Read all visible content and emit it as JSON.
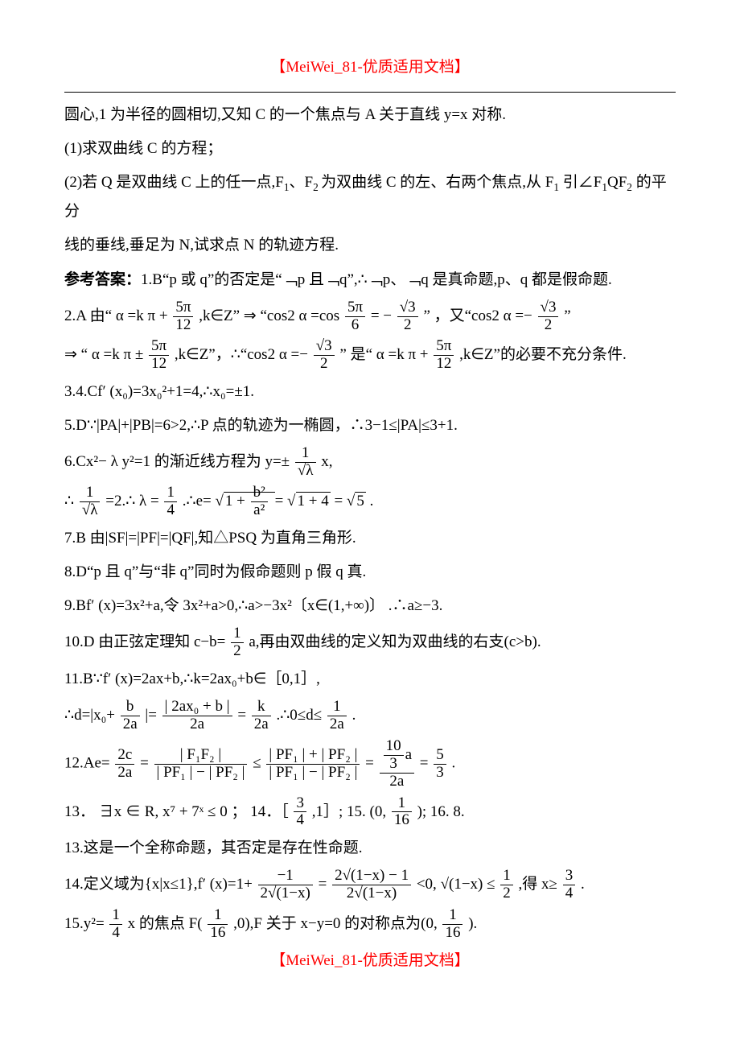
{
  "colors": {
    "text": "#000000",
    "accent": "#ff0000",
    "background": "#ffffff",
    "rule": "#000000"
  },
  "typography": {
    "body_font": "SimSun",
    "body_size_pt": 14,
    "line_height": 1.9,
    "header_color": "#ff0000"
  },
  "header": "【MeiWei_81-优质适用文档】",
  "footer": "【MeiWei_81-优质适用文档】",
  "lines": {
    "l1": "圆心,1 为半径的圆相切,又知 C 的一个焦点与 A 关于直线 y=x 对称.",
    "l2": "(1)求双曲线 C 的方程；",
    "l3a": "(2)若 Q 是双曲线 C 上的任一点,F",
    "l3b": "、F",
    "l3c": "为双曲线 C 的左、右两个焦点,从 F",
    "l3d": " 引∠F",
    "l3e": "QF",
    "l3f": " 的平分",
    "l4": "线的垂线,垂足为 N,试求点 N 的轨迹方程.",
    "l5a": "参考答案：",
    "l5b": "1.B“p 或 q”的否定是“﹁p 且﹁q”,∴﹁p、﹁q 是真命题,p、q 都是假命题.",
    "l6a": "2.A 由“ α =k π +",
    "l6b": ",k∈Z” ⇒ “cos2 α =cos",
    "l6c": "” ，又“cos2 α =−",
    "l6d": "”",
    "l7a": "⇒ “ α =k π ±",
    "l7b": ",k∈Z”，∴“cos2 α =−",
    "l7c": "” 是“ α =k π +",
    "l7d": ",k∈Z”的必要不充分条件.",
    "l8": "3.4.Cf′ (x₀)=3x₀²+1=4,∴x₀=±1.",
    "l9": "5.D∵|PA|+|PB|=6>2,∴P 点的轨迹为一椭圆，∴3−1≤|PA|≤3+1.",
    "l10a": "6.Cx²− λ y²=1 的渐近线方程为 y=±",
    "l10b": "x,",
    "l11a": "∴",
    "l11b": "=2.∴",
    "l11c": ".∴e=",
    "l11d": ".",
    "l12": "7.B 由|SF|=|PF|=|QF|,知△PSQ 为直角三角形.",
    "l13": "8.D“p 且 q”与“非 q”同时为假命题则 p 假 q 真.",
    "l14": "9.Bf′ (x)=3x²+a,令 3x²+a>0,∴a>−3x²〔x∈(1,+∞)〕 .∴a≥−3.",
    "l15a": "10.D 由正弦定理知 c−b=",
    "l15b": "a,再由双曲线的定义知为双曲线的右支(c>b).",
    "l16": "11.B∵f′ (x)=2ax+b,∴k=2ax₀+b∈［0,1］,",
    "l17a": "∴d=|x₀+",
    "l17b": "|=",
    "l17c": ".∴0≤d≤",
    "l17d": ".",
    "l18a": "12.Ae=",
    "l18b": "≤",
    "l18c": ".",
    "l19a": "13．",
    "l19b": "；  14．［",
    "l19c": ",1］;   15. (0,",
    "l19d": ");   16. 8.",
    "l20": "13.这是一个全称命题，其否定是存在性命题.",
    "l21a": "14.定义域为{x|x≤1},f′ (x)=1+",
    "l21b": "<0,",
    "l21c": ",得 x≥",
    "l21d": ".",
    "l22a": "15.y²=",
    "l22b": "x 的焦点 F(",
    "l22c": ",0),F 关于 x−y=0 的对称点为(0,",
    "l22d": ")."
  },
  "math": {
    "fivepi12": {
      "num": "5π",
      "den": "12"
    },
    "fivepi6": {
      "num": "5π",
      "den": "6"
    },
    "neg_sqrt3_2": {
      "num": "√3",
      "den": "2"
    },
    "one_over_sqrt_lambda": {
      "num": "1",
      "den": "√λ"
    },
    "lambda_eq": "λ =",
    "one_fourth": {
      "num": "1",
      "den": "4"
    },
    "e_expr_a": "1 +",
    "b2_a2": {
      "num": "b²",
      "den": "a²"
    },
    "sqrt_1_4": "√(1+4)",
    "sqrt5": "√5",
    "half": {
      "num": "1",
      "den": "2"
    },
    "b_2a": {
      "num": "b",
      "den": "2a"
    },
    "abs_2ax0_b_2a": {
      "num": "| 2ax₀ + b |",
      "den": "2a"
    },
    "k_2a": {
      "num": "k",
      "den": "2a"
    },
    "one_2a": {
      "num": "1",
      "den": "2a"
    },
    "two_c_2a": {
      "num": "2c",
      "den": "2a"
    },
    "F1F2_abs": {
      "num": "| F₁F₂ |",
      "den": "| PF₁ | − | PF₂ |"
    },
    "pf_sum": {
      "num": "| PF₁ | + | PF₂ |",
      "den": "| PF₁ | − | PF₂ |"
    },
    "ten3a_2a": {
      "num_top": "10",
      "num_bot": "3",
      "num_suffix": "a",
      "den": "2a"
    },
    "five_thirds": {
      "num": "5",
      "den": "3"
    },
    "exists": "∃x ∈ R, x⁷ + 7ˣ ≤ 0",
    "three_fourths": {
      "num": "3",
      "den": "4"
    },
    "one_sixteenth": {
      "num": "1",
      "den": "16"
    },
    "neg1_2sqrt": {
      "num": "−1",
      "den": "2√(1−x)"
    },
    "expr2_2sqrt": {
      "num": "2√(1−x) − 1",
      "den": "2√(1−x)"
    },
    "sqrt_1mx_le_half_a": "√(1−x) ≤",
    "sqrt_1mx_le_half_b": {
      "num": "1",
      "den": "2"
    },
    "one_fourth_b": {
      "num": "1",
      "den": "4"
    },
    "one_sixteenth_b": {
      "num": "1",
      "den": "16"
    },
    "eq": "="
  }
}
